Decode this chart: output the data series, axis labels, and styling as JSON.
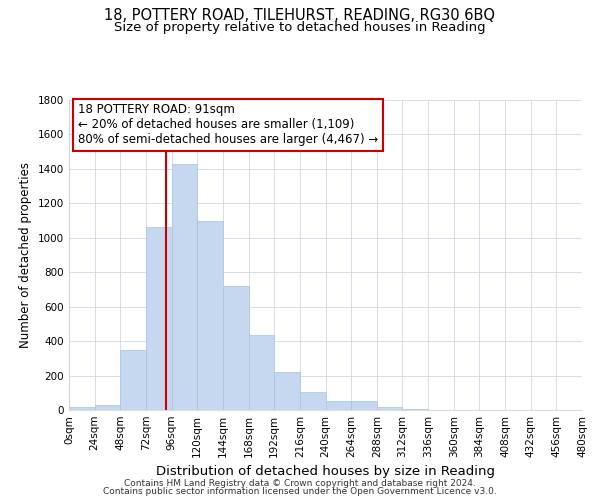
{
  "title": "18, POTTERY ROAD, TILEHURST, READING, RG30 6BQ",
  "subtitle": "Size of property relative to detached houses in Reading",
  "xlabel": "Distribution of detached houses by size in Reading",
  "ylabel": "Number of detached properties",
  "bar_color": "#c5d8f0",
  "bar_edge_color": "#a8c4e0",
  "background_color": "#ffffff",
  "grid_color": "#d0d8e8",
  "bin_edges": [
    0,
    24,
    48,
    72,
    96,
    120,
    144,
    168,
    192,
    216,
    240,
    264,
    288,
    312,
    336,
    360,
    384,
    408,
    432,
    456,
    480
  ],
  "bar_heights": [
    15,
    30,
    350,
    1060,
    1430,
    1100,
    720,
    435,
    220,
    105,
    55,
    50,
    18,
    5,
    2,
    1,
    0,
    0,
    0,
    0
  ],
  "vline_x": 91,
  "vline_color": "#cc0000",
  "annotation_line1": "18 POTTERY ROAD: 91sqm",
  "annotation_line2": "← 20% of detached houses are smaller (1,109)",
  "annotation_line3": "80% of semi-detached houses are larger (4,467) →",
  "annotation_box_color": "#ffffff",
  "annotation_box_edge": "#cc0000",
  "ylim": [
    0,
    1800
  ],
  "yticks": [
    0,
    200,
    400,
    600,
    800,
    1000,
    1200,
    1400,
    1600,
    1800
  ],
  "xtick_labels": [
    "0sqm",
    "24sqm",
    "48sqm",
    "72sqm",
    "96sqm",
    "120sqm",
    "144sqm",
    "168sqm",
    "192sqm",
    "216sqm",
    "240sqm",
    "264sqm",
    "288sqm",
    "312sqm",
    "336sqm",
    "360sqm",
    "384sqm",
    "408sqm",
    "432sqm",
    "456sqm",
    "480sqm"
  ],
  "footer_line1": "Contains HM Land Registry data © Crown copyright and database right 2024.",
  "footer_line2": "Contains public sector information licensed under the Open Government Licence v3.0.",
  "title_fontsize": 10.5,
  "subtitle_fontsize": 9.5,
  "xlabel_fontsize": 9.5,
  "ylabel_fontsize": 8.5,
  "tick_fontsize": 7.5,
  "annotation_fontsize": 8.5,
  "footer_fontsize": 6.5
}
